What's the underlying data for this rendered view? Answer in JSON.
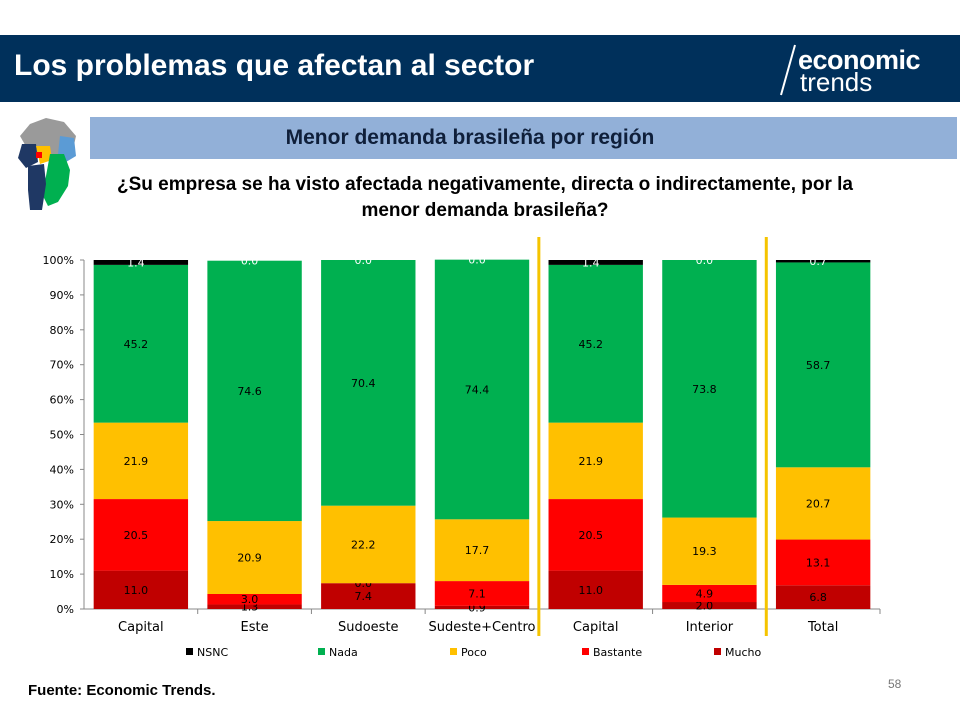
{
  "header": {
    "title": "Los problemas que afectan al sector"
  },
  "logo": {
    "line1": "economic",
    "line2": "trends"
  },
  "subtitle": "Menor demanda brasileña por región",
  "question": {
    "line1": "¿Su empresa se ha visto afectada negativamente, directa o indirectamente, por la",
    "line2": "menor demanda brasileña?"
  },
  "footer": {
    "source": "Fuente: Economic Trends.",
    "page": "58"
  },
  "colors": {
    "header_bg": "#00305b",
    "band_bg": "#92b0d8",
    "separator": "#f5c400",
    "NSNC": "#000000",
    "Nada": "#00b050",
    "Poco": "#ffc000",
    "Bastante": "#ff0000",
    "Mucho": "#c00000"
  },
  "chart_data": {
    "type": "bar",
    "stacked": true,
    "categories": [
      "Capital",
      "Este",
      "Sudoeste",
      "Sudeste+Centro",
      "Capital",
      "Interior",
      "Total"
    ],
    "ylim": [
      0,
      100
    ],
    "yticks": [
      "0%",
      "10%",
      "20%",
      "30%",
      "40%",
      "50%",
      "60%",
      "70%",
      "80%",
      "90%",
      "100%"
    ],
    "separators_after_category_index": [
      3,
      5
    ],
    "series": [
      {
        "name": "Mucho",
        "values": [
          11.0,
          1.3,
          7.4,
          0.9,
          11.0,
          2.0,
          6.8
        ],
        "labels": [
          "11.0",
          "1.3",
          "7.4",
          "0.9",
          "11.0",
          "2.0",
          "6.8"
        ]
      },
      {
        "name": "Bastante",
        "values": [
          20.5,
          3.0,
          0.0,
          7.1,
          20.5,
          4.9,
          13.1
        ],
        "labels": [
          "20.5",
          "3.0",
          "0.0",
          "7.1",
          "20.5",
          "4.9",
          "13.1"
        ]
      },
      {
        "name": "Poco",
        "values": [
          21.9,
          20.9,
          22.2,
          17.7,
          21.9,
          19.3,
          20.7
        ],
        "labels": [
          "21.9",
          "20.9",
          "22.2",
          "17.7",
          "21.9",
          "19.3",
          "20.7"
        ]
      },
      {
        "name": "Nada",
        "values": [
          45.2,
          74.6,
          70.4,
          74.4,
          45.2,
          73.8,
          58.7
        ],
        "labels": [
          "45.2",
          "74.6",
          "70.4",
          "74.4",
          "45.2",
          "73.8",
          "58.7"
        ]
      },
      {
        "name": "NSNC",
        "values": [
          1.4,
          0.0,
          0.0,
          0.0,
          1.4,
          0.0,
          0.7
        ],
        "labels": [
          "1.4",
          "0.0",
          "0.0",
          "0.0",
          "1.4",
          "0.0",
          "0.7"
        ]
      }
    ],
    "legend": {
      "position": "bottom",
      "order": [
        "NSNC",
        "Nada",
        "Poco",
        "Bastante",
        "Mucho"
      ]
    },
    "grid": false
  }
}
